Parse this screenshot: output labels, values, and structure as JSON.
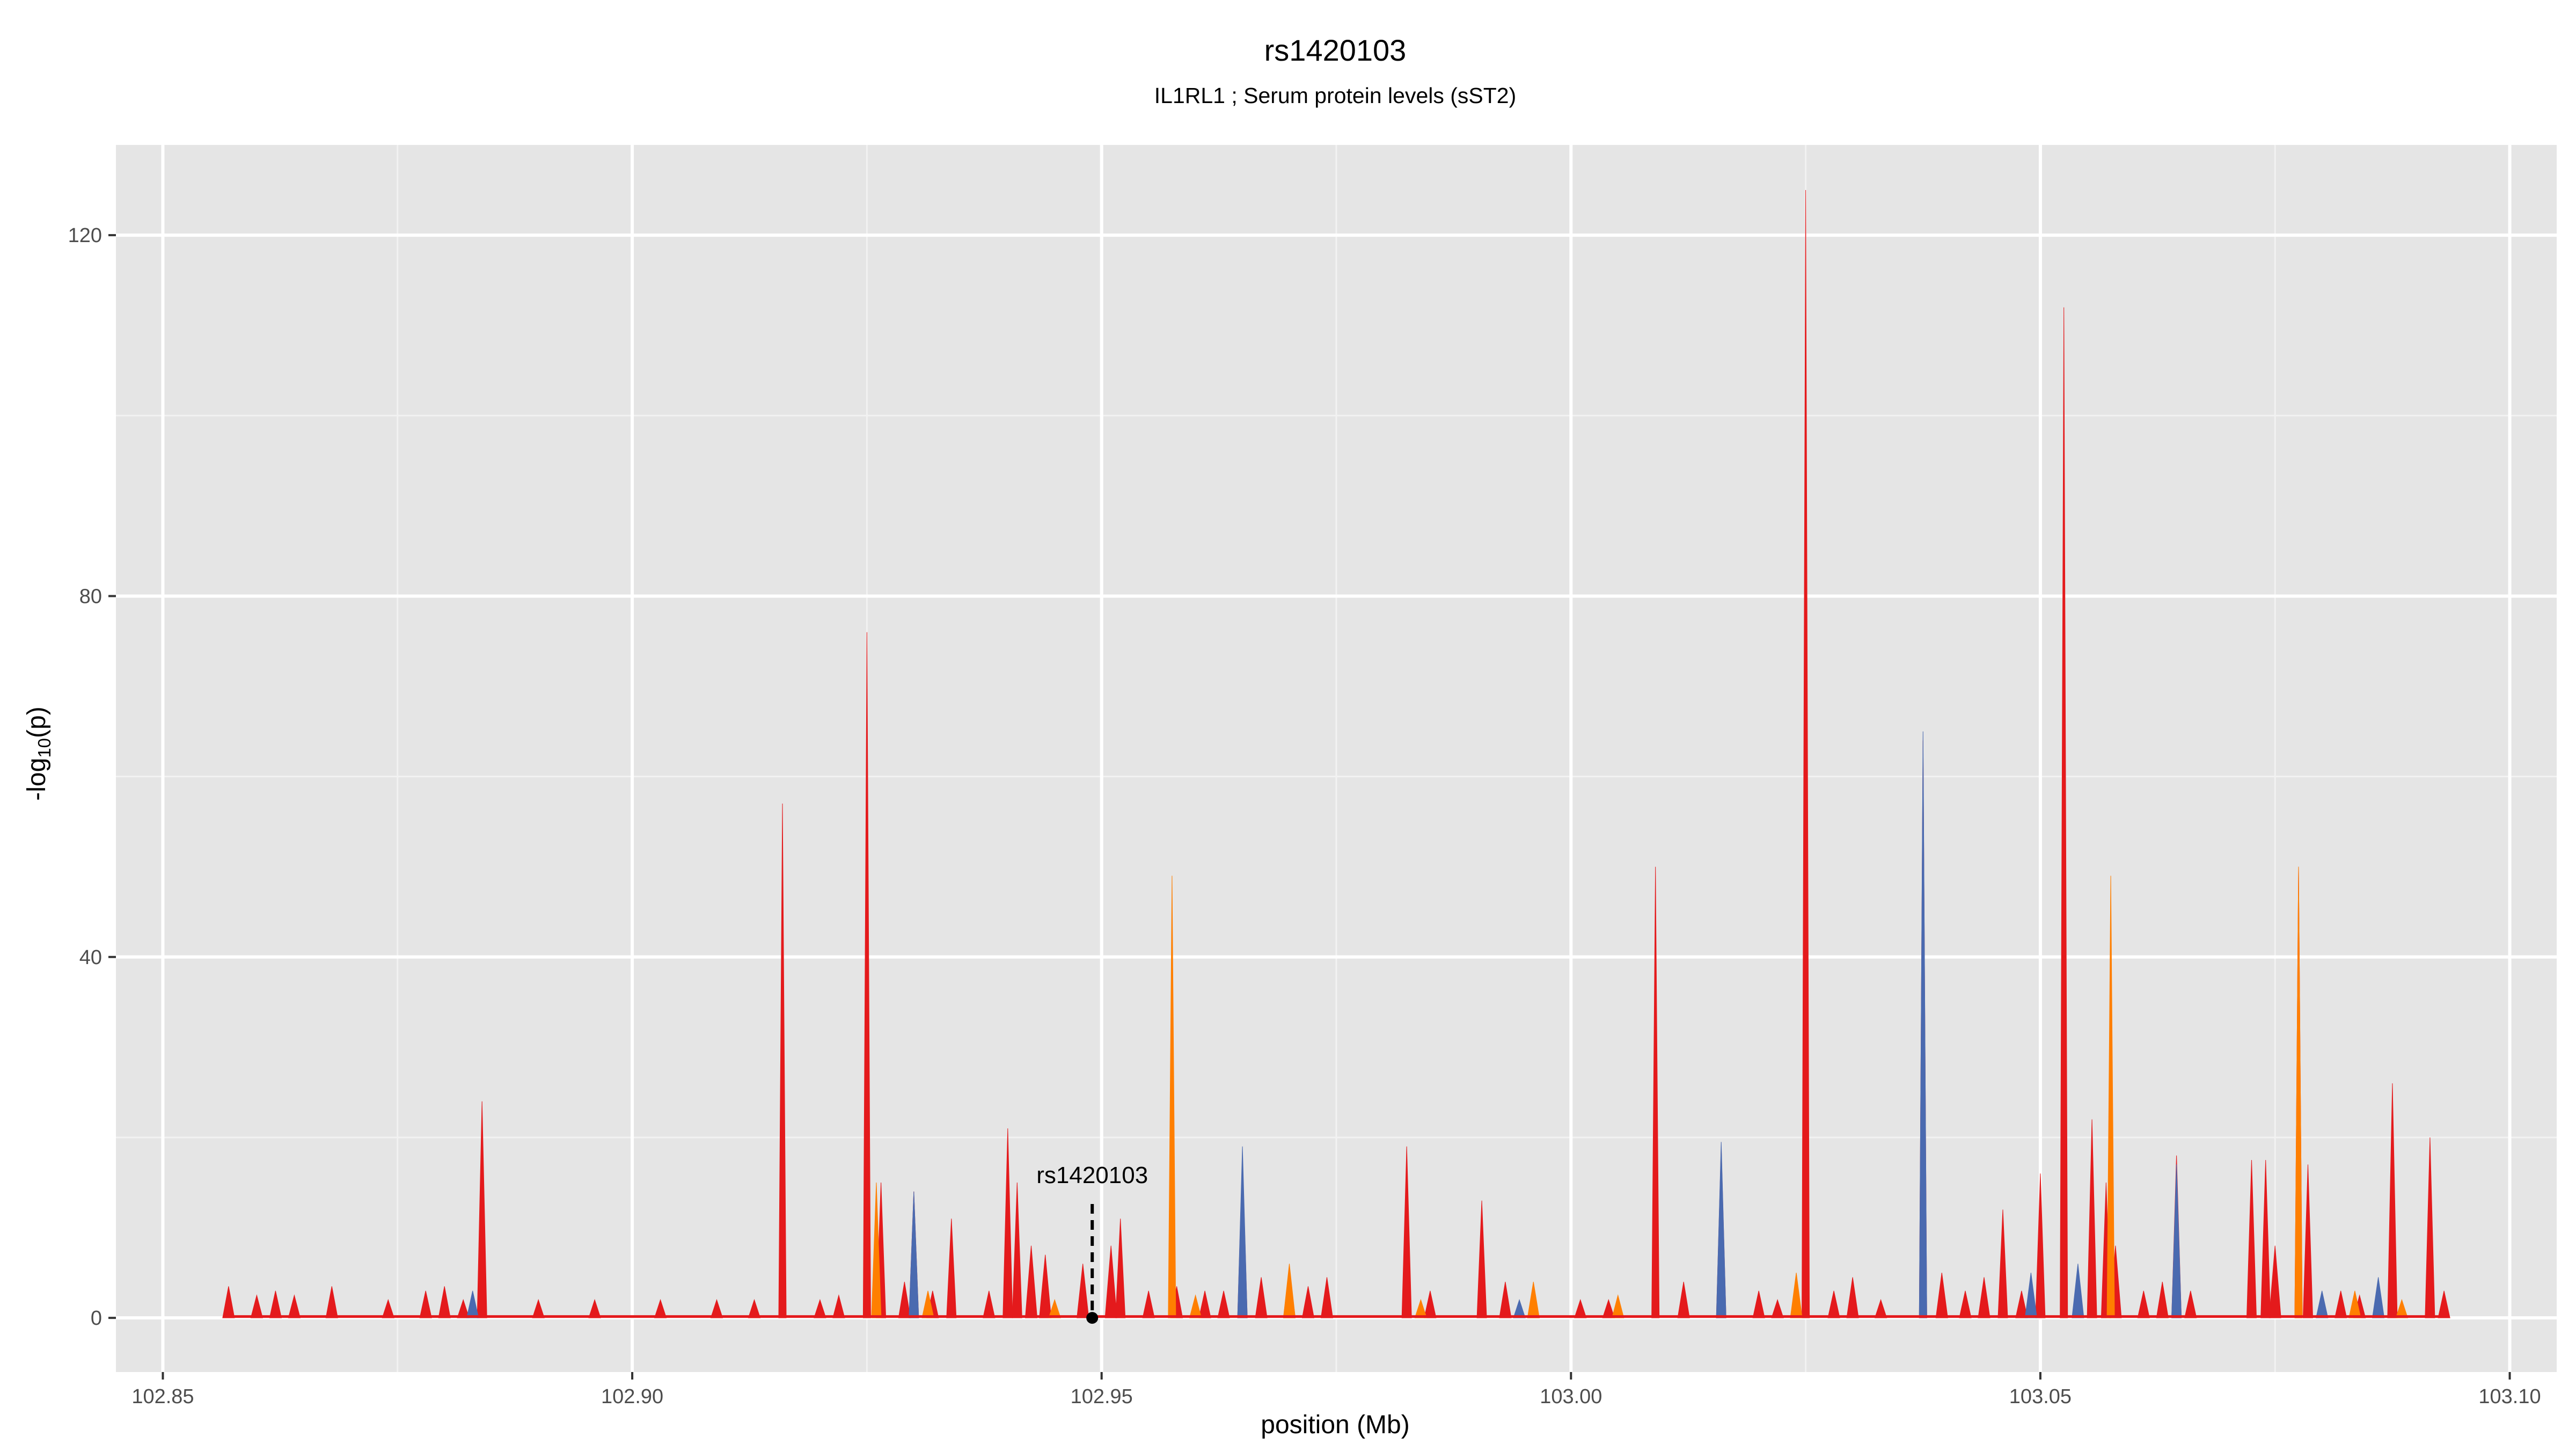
{
  "chart_data": {
    "type": "area",
    "title": "rs1420103",
    "subtitle": "IL1RL1 ; Serum protein levels (sST2)",
    "xlabel": "position (Mb)",
    "ylabel": "-log10(p)",
    "ylabel_parts": {
      "prefix": "-log",
      "subscript": "10",
      "suffix": "(p)"
    },
    "xlim": [
      102.845,
      103.105
    ],
    "ylim": [
      -6,
      130
    ],
    "x_ticks": [
      102.85,
      102.9,
      102.95,
      103.0,
      103.05,
      103.1
    ],
    "x_tick_labels": [
      "102.85",
      "102.90",
      "102.95",
      "103.00",
      "103.05",
      "103.10"
    ],
    "y_ticks": [
      0,
      40,
      80,
      120
    ],
    "y_tick_labels": [
      "0",
      "40",
      "80",
      "120"
    ],
    "grid": true,
    "background": "#e5e5e5",
    "highlight": {
      "label": "rs1420103",
      "x": 102.949,
      "y": 0
    },
    "series": [
      {
        "color": "#e41a1c",
        "peaks": [
          [
            102.857,
            3.5
          ],
          [
            102.86,
            2.5
          ],
          [
            102.862,
            3
          ],
          [
            102.864,
            2.5
          ],
          [
            102.868,
            3.5
          ],
          [
            102.874,
            2
          ],
          [
            102.878,
            3
          ],
          [
            102.88,
            3.5
          ],
          [
            102.882,
            2
          ],
          [
            102.884,
            24
          ],
          [
            102.89,
            2
          ],
          [
            102.896,
            2
          ],
          [
            102.903,
            2
          ],
          [
            102.909,
            2
          ],
          [
            102.913,
            2
          ],
          [
            102.916,
            57
          ],
          [
            102.92,
            2
          ],
          [
            102.922,
            2.5
          ],
          [
            102.925,
            76
          ],
          [
            102.9265,
            15
          ],
          [
            102.929,
            4
          ],
          [
            102.93,
            14
          ],
          [
            102.932,
            3
          ],
          [
            102.934,
            11
          ],
          [
            102.938,
            3
          ],
          [
            102.94,
            21
          ],
          [
            102.941,
            15
          ],
          [
            102.9425,
            8
          ],
          [
            102.944,
            7
          ],
          [
            102.948,
            6
          ],
          [
            102.951,
            8
          ],
          [
            102.952,
            11
          ],
          [
            102.955,
            3
          ],
          [
            102.958,
            3.5
          ],
          [
            102.961,
            3
          ],
          [
            102.963,
            3
          ],
          [
            102.965,
            18
          ],
          [
            102.967,
            4.5
          ],
          [
            102.97,
            5.5
          ],
          [
            102.972,
            3.5
          ],
          [
            102.974,
            4.5
          ],
          [
            102.9825,
            19
          ],
          [
            102.985,
            3
          ],
          [
            102.9905,
            13
          ],
          [
            102.993,
            4
          ],
          [
            102.996,
            2
          ],
          [
            103.001,
            2
          ],
          [
            103.004,
            2
          ],
          [
            103.009,
            50
          ],
          [
            103.012,
            4
          ],
          [
            103.016,
            19
          ],
          [
            103.02,
            3
          ],
          [
            103.022,
            2
          ],
          [
            103.025,
            125
          ],
          [
            103.028,
            3
          ],
          [
            103.03,
            4.5
          ],
          [
            103.033,
            2
          ],
          [
            103.0375,
            64
          ],
          [
            103.0395,
            5
          ],
          [
            103.042,
            3
          ],
          [
            103.044,
            4.5
          ],
          [
            103.046,
            12
          ],
          [
            103.048,
            3
          ],
          [
            103.05,
            16
          ],
          [
            103.0525,
            112
          ],
          [
            103.0555,
            22
          ],
          [
            103.057,
            15
          ],
          [
            103.058,
            8
          ],
          [
            103.061,
            3
          ],
          [
            103.063,
            4
          ],
          [
            103.0645,
            18
          ],
          [
            103.066,
            3
          ],
          [
            103.0725,
            17.5
          ],
          [
            103.074,
            17.5
          ],
          [
            103.075,
            8
          ],
          [
            103.0775,
            50
          ],
          [
            103.0785,
            17
          ],
          [
            103.082,
            3
          ],
          [
            103.084,
            2.5
          ],
          [
            103.0875,
            26
          ],
          [
            103.0915,
            20
          ],
          [
            103.093,
            3
          ]
        ]
      },
      {
        "color": "#ff7f00",
        "peaks": [
          [
            102.926,
            15
          ],
          [
            102.9575,
            49
          ],
          [
            102.9315,
            3
          ],
          [
            102.945,
            2
          ],
          [
            102.96,
            2.5
          ],
          [
            102.97,
            6
          ],
          [
            102.984,
            2
          ],
          [
            102.996,
            4
          ],
          [
            103.005,
            2.5
          ],
          [
            103.024,
            5
          ],
          [
            103.0575,
            49
          ],
          [
            103.0775,
            50
          ],
          [
            103.0835,
            3
          ],
          [
            103.0885,
            2
          ]
        ]
      },
      {
        "color": "#4a6ab0",
        "peaks": [
          [
            102.883,
            3
          ],
          [
            102.93,
            14
          ],
          [
            102.965,
            19
          ],
          [
            102.9945,
            2
          ],
          [
            103.016,
            19.5
          ],
          [
            103.0375,
            65
          ],
          [
            103.049,
            5
          ],
          [
            103.054,
            6
          ],
          [
            103.0645,
            17
          ],
          [
            103.08,
            3
          ],
          [
            103.086,
            4.5
          ]
        ]
      }
    ]
  }
}
